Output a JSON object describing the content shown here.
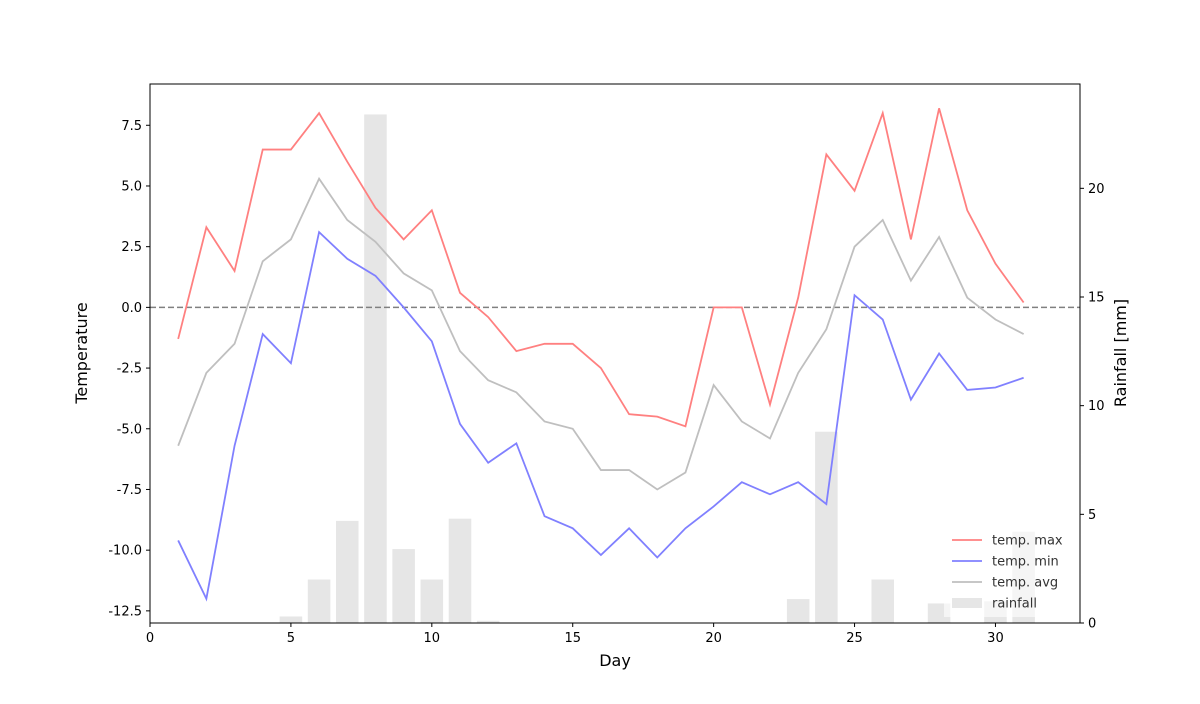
{
  "chart_data": {
    "type": "line+bar",
    "title": "",
    "xlabel": "Day",
    "ylabel": "Temperature",
    "y2label": "Rainfall [mm]",
    "xlim": [
      0,
      33
    ],
    "ylim": [
      -13,
      9.2
    ],
    "y2lim": [
      0,
      24.8
    ],
    "xticks": [
      0,
      5,
      10,
      15,
      20,
      25,
      30
    ],
    "yticks": [
      -12.5,
      -10.0,
      -7.5,
      -5.0,
      -2.5,
      0.0,
      2.5,
      5.0,
      7.5
    ],
    "y2ticks": [
      0,
      5,
      10,
      15,
      20
    ],
    "reference_line": {
      "y": 0,
      "style": "dashed",
      "color": "#808080"
    },
    "x": [
      1,
      2,
      3,
      4,
      5,
      6,
      7,
      8,
      9,
      10,
      11,
      12,
      13,
      14,
      15,
      16,
      17,
      18,
      19,
      20,
      21,
      22,
      23,
      24,
      25,
      26,
      27,
      28,
      29,
      30,
      31
    ],
    "series": [
      {
        "name": "temp. max",
        "color": "#ff8080",
        "values": [
          -1.3,
          3.3,
          1.5,
          6.5,
          6.5,
          8.0,
          6.0,
          4.1,
          2.8,
          4.0,
          0.6,
          -0.4,
          -1.8,
          -1.5,
          -1.5,
          -2.5,
          -4.4,
          -4.5,
          -4.9,
          0.0,
          0.0,
          -4.0,
          0.4,
          6.3,
          4.8,
          8.0,
          2.8,
          8.2,
          4.0,
          1.8,
          0.2
        ]
      },
      {
        "name": "temp. min",
        "color": "#8080ff",
        "values": [
          -9.6,
          -12.0,
          -5.7,
          -1.1,
          -2.3,
          3.1,
          2.0,
          1.3,
          0.0,
          -1.4,
          -4.8,
          -6.4,
          -5.6,
          -8.6,
          -9.1,
          -10.2,
          -9.1,
          -10.3,
          -9.1,
          -8.2,
          -7.2,
          -7.7,
          -7.2,
          -8.1,
          0.5,
          -0.5,
          -3.8,
          -1.9,
          -3.4,
          -3.3,
          -2.9
        ]
      },
      {
        "name": "temp. avg",
        "color": "#bfbfbf",
        "values": [
          -5.7,
          -2.7,
          -1.5,
          1.9,
          2.8,
          5.3,
          3.6,
          2.7,
          1.4,
          0.7,
          -1.8,
          -3.0,
          -3.5,
          -4.7,
          -5.0,
          -6.7,
          -6.7,
          -7.5,
          -6.8,
          -3.2,
          -4.7,
          -5.4,
          -2.7,
          -0.9,
          2.5,
          3.6,
          1.1,
          2.9,
          0.4,
          -0.5,
          -1.1
        ]
      }
    ],
    "bars": {
      "name": "rainfall",
      "color": "#e6e6e6",
      "values": [
        0,
        0,
        0,
        0,
        0.3,
        2.0,
        4.7,
        23.4,
        3.4,
        2.0,
        4.8,
        0.1,
        0,
        0,
        0,
        0,
        0,
        0,
        0,
        0,
        0,
        0,
        1.1,
        8.8,
        0,
        2.0,
        0,
        0.9,
        0,
        1.0,
        4.2
      ]
    },
    "legend": {
      "placement": "bottom-right",
      "entries": [
        "temp. max",
        "temp. min",
        "temp. avg",
        "rainfall"
      ]
    }
  }
}
